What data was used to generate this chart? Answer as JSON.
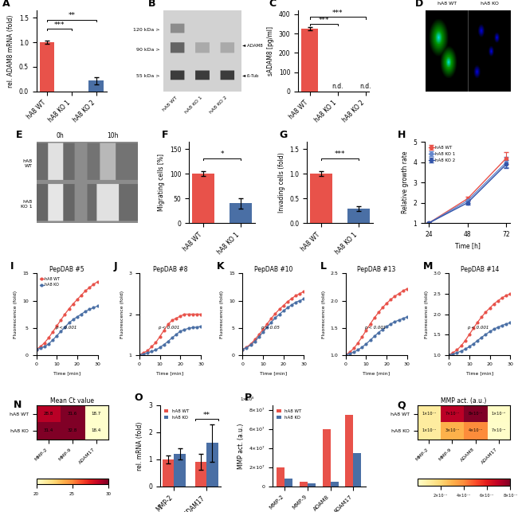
{
  "panel_A": {
    "categories": [
      "hA8 WT",
      "hA8 KO 1",
      "hA8 KO 2"
    ],
    "values": [
      1.0,
      0.0,
      0.22
    ],
    "errors": [
      0.03,
      0.0,
      0.07
    ],
    "colors": [
      "#e8524a",
      "#4a6fa5",
      "#4a6fa5"
    ],
    "ylabel": "rel. ADAM8 mRNA (fold)",
    "ylim": [
      0,
      1.65
    ],
    "yticks": [
      0.0,
      0.5,
      1.0,
      1.5
    ]
  },
  "panel_C": {
    "categories": [
      "hA8 WT",
      "hA8 KO 1",
      "hA8 KO 2"
    ],
    "values": [
      325.0,
      0.0,
      0.0
    ],
    "errors": [
      10.0,
      0.0,
      0.0
    ],
    "colors": [
      "#e8524a",
      "#4a6fa5",
      "#4a6fa5"
    ],
    "ylabel": "sADAM8 [pg/ml]",
    "ylim": [
      0,
      420
    ],
    "yticks": [
      0,
      100,
      200,
      300,
      400
    ]
  },
  "panel_F": {
    "categories": [
      "hA8 WT",
      "hA8 KO 1"
    ],
    "values": [
      100.0,
      40.0
    ],
    "errors": [
      5.0,
      10.0
    ],
    "colors": [
      "#e8524a",
      "#4a6fa5"
    ],
    "ylabel": "Migrating cells [%]",
    "ylim": [
      0,
      165
    ],
    "yticks": [
      0,
      50,
      100,
      150
    ]
  },
  "panel_G": {
    "categories": [
      "hA8 WT",
      "hA8 KO 1"
    ],
    "values": [
      1.0,
      0.3
    ],
    "errors": [
      0.05,
      0.05
    ],
    "colors": [
      "#e8524a",
      "#4a6fa5"
    ],
    "ylabel": "Invading cells (fold)",
    "ylim": [
      0,
      1.65
    ],
    "yticks": [
      0.0,
      0.5,
      1.0,
      1.5
    ]
  },
  "panel_H": {
    "xlabel": "Time [h]",
    "ylabel": "Relative growth rate",
    "xticks": [
      24,
      48,
      72
    ],
    "ylim": [
      1,
      5
    ],
    "yticks": [
      1,
      2,
      3,
      4,
      5
    ],
    "series": [
      {
        "label": "hA8 WT",
        "color": "#e8524a",
        "x": [
          24,
          48,
          72
        ],
        "y": [
          1.0,
          2.2,
          4.2
        ],
        "err": [
          0.05,
          0.1,
          0.3
        ]
      },
      {
        "label": "hA8 KO 1",
        "color": "#6688cc",
        "x": [
          24,
          48,
          72
        ],
        "y": [
          1.0,
          2.1,
          4.0
        ],
        "err": [
          0.05,
          0.1,
          0.25
        ]
      },
      {
        "label": "hA8 KO 2",
        "color": "#3355aa",
        "x": [
          24,
          48,
          72
        ],
        "y": [
          1.0,
          2.0,
          3.9
        ],
        "err": [
          0.05,
          0.1,
          0.2
        ]
      }
    ]
  },
  "panel_I": {
    "title": "PepDAB #5",
    "xlabel": "Time [min]",
    "ylabel": "Fluorescence (fold)",
    "xlim": [
      0,
      30
    ],
    "ylim": [
      0,
      15
    ],
    "yticks": [
      0,
      5,
      10,
      15
    ],
    "pvalue": "p < 0.001",
    "series": [
      {
        "label": "hA8 WT",
        "color": "#e8524a",
        "x": [
          0,
          2,
          4,
          6,
          8,
          10,
          12,
          14,
          16,
          18,
          20,
          22,
          24,
          26,
          28,
          30
        ],
        "y": [
          1,
          1.5,
          2.2,
          3.1,
          4.2,
          5.3,
          6.4,
          7.5,
          8.5,
          9.4,
          10.2,
          11.0,
          11.8,
          12.4,
          13.0,
          13.5
        ]
      },
      {
        "label": "hA8 KO",
        "color": "#4a6fa5",
        "x": [
          0,
          2,
          4,
          6,
          8,
          10,
          12,
          14,
          16,
          18,
          20,
          22,
          24,
          26,
          28,
          30
        ],
        "y": [
          1,
          1.2,
          1.5,
          2.0,
          2.7,
          3.5,
          4.3,
          5.1,
          5.9,
          6.5,
          7.0,
          7.5,
          8.0,
          8.4,
          8.7,
          9.0
        ]
      }
    ]
  },
  "panel_J": {
    "title": "PepDAB #8",
    "xlabel": "Time [min]",
    "ylabel": "Fluorescence (fold)",
    "xlim": [
      0,
      30
    ],
    "ylim": [
      1,
      3
    ],
    "yticks": [
      1,
      2,
      3
    ],
    "pvalue": "p < 0.001",
    "series": [
      {
        "label": "hA8 WT",
        "color": "#e8524a",
        "x": [
          0,
          2,
          4,
          6,
          8,
          10,
          12,
          14,
          16,
          18,
          20,
          22,
          24,
          26,
          28,
          30
        ],
        "y": [
          1,
          1.05,
          1.1,
          1.2,
          1.3,
          1.45,
          1.6,
          1.75,
          1.85,
          1.9,
          1.95,
          2.0,
          2.0,
          2.0,
          2.0,
          2.0
        ]
      },
      {
        "label": "hA8 KO",
        "color": "#4a6fa5",
        "x": [
          0,
          2,
          4,
          6,
          8,
          10,
          12,
          14,
          16,
          18,
          20,
          22,
          24,
          26,
          28,
          30
        ],
        "y": [
          1,
          1.02,
          1.05,
          1.08,
          1.12,
          1.18,
          1.25,
          1.33,
          1.42,
          1.5,
          1.58,
          1.62,
          1.65,
          1.67,
          1.68,
          1.7
        ]
      }
    ]
  },
  "panel_K": {
    "title": "PepDAB #10",
    "xlabel": "Time [min]",
    "ylabel": "Fluorescence (fold)",
    "xlim": [
      0,
      30
    ],
    "ylim": [
      0,
      15
    ],
    "yticks": [
      0,
      5,
      10,
      15
    ],
    "pvalue": "p > 0.05",
    "series": [
      {
        "label": "hA8 WT",
        "color": "#e8524a",
        "x": [
          0,
          2,
          4,
          6,
          8,
          10,
          12,
          14,
          16,
          18,
          20,
          22,
          24,
          26,
          28,
          30
        ],
        "y": [
          1,
          1.4,
          2.0,
          2.8,
          3.7,
          4.7,
          5.7,
          6.7,
          7.6,
          8.4,
          9.1,
          9.8,
          10.4,
          10.9,
          11.3,
          11.7
        ]
      },
      {
        "label": "hA8 KO",
        "color": "#4a6fa5",
        "x": [
          0,
          2,
          4,
          6,
          8,
          10,
          12,
          14,
          16,
          18,
          20,
          22,
          24,
          26,
          28,
          30
        ],
        "y": [
          1,
          1.3,
          1.8,
          2.5,
          3.3,
          4.2,
          5.1,
          6.0,
          6.8,
          7.5,
          8.1,
          8.7,
          9.2,
          9.7,
          10.0,
          10.3
        ]
      }
    ]
  },
  "panel_L": {
    "title": "PepDAB #13",
    "xlabel": "Time [min]",
    "ylabel": "Fluorescence (fold)",
    "xlim": [
      0,
      30
    ],
    "ylim": [
      1.0,
      2.5
    ],
    "yticks": [
      1.0,
      1.5,
      2.0,
      2.5
    ],
    "pvalue": "p < 0.001",
    "series": [
      {
        "label": "hA8 WT",
        "color": "#e8524a",
        "x": [
          0,
          2,
          4,
          6,
          8,
          10,
          12,
          14,
          16,
          18,
          20,
          22,
          24,
          26,
          28,
          30
        ],
        "y": [
          1.0,
          1.05,
          1.12,
          1.22,
          1.33,
          1.45,
          1.57,
          1.68,
          1.78,
          1.87,
          1.95,
          2.02,
          2.08,
          2.13,
          2.18,
          2.22
        ]
      },
      {
        "label": "hA8 KO",
        "color": "#4a6fa5",
        "x": [
          0,
          2,
          4,
          6,
          8,
          10,
          12,
          14,
          16,
          18,
          20,
          22,
          24,
          26,
          28,
          30
        ],
        "y": [
          1.0,
          1.02,
          1.05,
          1.09,
          1.14,
          1.2,
          1.27,
          1.34,
          1.41,
          1.47,
          1.52,
          1.57,
          1.61,
          1.64,
          1.67,
          1.7
        ]
      }
    ]
  },
  "panel_M": {
    "title": "PepDAB #14",
    "xlabel": "Time [min]",
    "ylabel": "Fluorescence (fold)",
    "xlim": [
      0,
      30
    ],
    "ylim": [
      1.0,
      3.0
    ],
    "yticks": [
      1.0,
      1.5,
      2.0,
      2.5,
      3.0
    ],
    "pvalue": "p < 0.001",
    "series": [
      {
        "label": "hA8 WT",
        "color": "#e8524a",
        "x": [
          0,
          2,
          4,
          6,
          8,
          10,
          12,
          14,
          16,
          18,
          20,
          22,
          24,
          26,
          28,
          30
        ],
        "y": [
          1.0,
          1.05,
          1.12,
          1.22,
          1.35,
          1.5,
          1.65,
          1.8,
          1.93,
          2.05,
          2.15,
          2.25,
          2.33,
          2.4,
          2.46,
          2.5
        ]
      },
      {
        "label": "hA8 KO",
        "color": "#4a6fa5",
        "x": [
          0,
          2,
          4,
          6,
          8,
          10,
          12,
          14,
          16,
          18,
          20,
          22,
          24,
          26,
          28,
          30
        ],
        "y": [
          1.0,
          1.02,
          1.05,
          1.09,
          1.14,
          1.2,
          1.27,
          1.35,
          1.43,
          1.5,
          1.57,
          1.63,
          1.68,
          1.72,
          1.76,
          1.79
        ]
      }
    ]
  },
  "panel_N": {
    "title": "Mean Ct value",
    "rows": [
      "hA8 WT",
      "hA8 KO"
    ],
    "cols": [
      "MMP-2",
      "MMP-9",
      "ADAM17"
    ],
    "values": [
      [
        28.8,
        31.6,
        18.7
      ],
      [
        31.4,
        32.8,
        18.4
      ]
    ],
    "colormap_range": [
      20,
      30
    ]
  },
  "panel_O": {
    "categories": [
      "MMP-2",
      "ADAM17"
    ],
    "wt_values": [
      1.0,
      0.9
    ],
    "ko_values": [
      1.2,
      1.6
    ],
    "wt_errors": [
      0.15,
      0.3
    ],
    "ko_errors": [
      0.2,
      0.7
    ],
    "wt_color": "#e8524a",
    "ko_color": "#4a6fa5",
    "ylabel": "rel. mRNA (fold)",
    "ylim": [
      0,
      3
    ],
    "yticks": [
      0,
      1,
      2,
      3
    ]
  },
  "panel_P": {
    "categories": [
      "MMP-2",
      "MMP-9",
      "ADAM8",
      "ADAM17"
    ],
    "wt_values": [
      20000000,
      5000000,
      60000000,
      75000000
    ],
    "ko_values": [
      8000000,
      3000000,
      5000000,
      35000000
    ],
    "wt_color": "#e8524a",
    "ko_color": "#4a6fa5",
    "ylabel": "MMP act. (a.u.)",
    "ylim": [
      0,
      85000000
    ],
    "yticks": [
      0,
      20000000,
      40000000,
      60000000,
      80000000
    ]
  },
  "panel_Q": {
    "title": "MMP act. (a.u.)",
    "rows": [
      "hA8 WT",
      "hA8 KO"
    ],
    "cols": [
      "MMP-2",
      "MMP-9",
      "ADAM8",
      "ADAM17"
    ],
    "wt_text": [
      "1×10⁻⁷",
      "7×10⁻⁷",
      "8×10⁻⁷",
      "1×10⁻⁸"
    ],
    "ko_text": [
      "1×10⁻⁷",
      "3×10⁻⁷",
      "4×10⁻⁷",
      "7×10⁻⁹"
    ],
    "wt_numeric": [
      1e-07,
      7e-07,
      8e-07,
      1e-08
    ],
    "ko_numeric": [
      1e-07,
      3e-07,
      4e-07,
      7e-09
    ],
    "cbar_labels": [
      "2×10⁻⁷",
      "4×10⁻⁷",
      "6×10⁻⁷",
      "8×10⁻⁷"
    ]
  },
  "bg_color": "#ffffff"
}
